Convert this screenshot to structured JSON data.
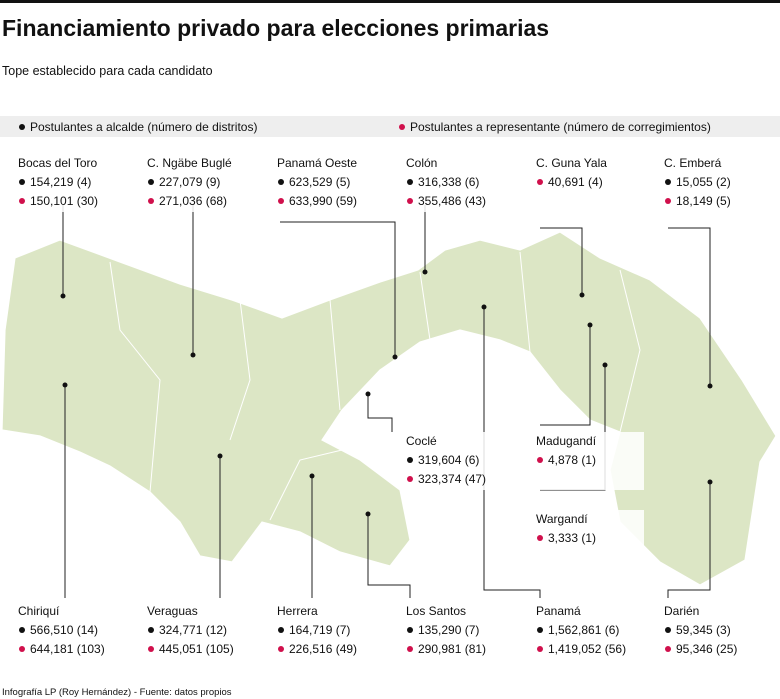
{
  "header": {
    "title": "Financiamiento privado para elecciones primarias",
    "subtitle": "Tope establecido para cada candidato"
  },
  "legend": {
    "alcalde": "Postulantes a alcalde (número de distritos)",
    "representante": "Postulantes a representante (número de corregimientos)"
  },
  "regions": [
    {
      "name": "Bocas del Toro",
      "alcalde": "154,219 (4)",
      "representante": "150,101 (30)"
    },
    {
      "name": "C. Ngäbe Buglé",
      "alcalde": "227,079 (9)",
      "representante": "271,036 (68)"
    },
    {
      "name": "Panamá Oeste",
      "alcalde": "623,529 (5)",
      "representante": "633,990 (59)"
    },
    {
      "name": "Colón",
      "alcalde": "316,338 (6)",
      "representante": "355,486 (43)"
    },
    {
      "name": "C. Guna Yala",
      "representante": "40,691 (4)"
    },
    {
      "name": "C. Emberá",
      "alcalde": "15,055 (2)",
      "representante": "18,149 (5)"
    },
    {
      "name": "Coclé",
      "alcalde": "319,604 (6)",
      "representante": "323,374 (47)"
    },
    {
      "name": "Madugandí",
      "representante": "4,878 (1)"
    },
    {
      "name": "Wargandí",
      "representante": "3,333 (1)"
    },
    {
      "name": "Chiriquí",
      "alcalde": "566,510 (14)",
      "representante": "644,181 (103)"
    },
    {
      "name": "Veraguas",
      "alcalde": "324,771 (12)",
      "representante": "445,051 (105)"
    },
    {
      "name": "Herrera",
      "alcalde": "164,719 (7)",
      "representante": "226,516 (49)"
    },
    {
      "name": "Los Santos",
      "alcalde": "135,290 (7)",
      "representante": "290,981 (81)"
    },
    {
      "name": "Panamá",
      "alcalde": "1,562,861 (6)",
      "representante": "1,419,052 (56)"
    },
    {
      "name": "Darién",
      "alcalde": "59,345 (3)",
      "representante": "95,346 (25)"
    }
  ],
  "footer": "Infografía LP (Roy Hernández) - Fuente: datos propios"
}
